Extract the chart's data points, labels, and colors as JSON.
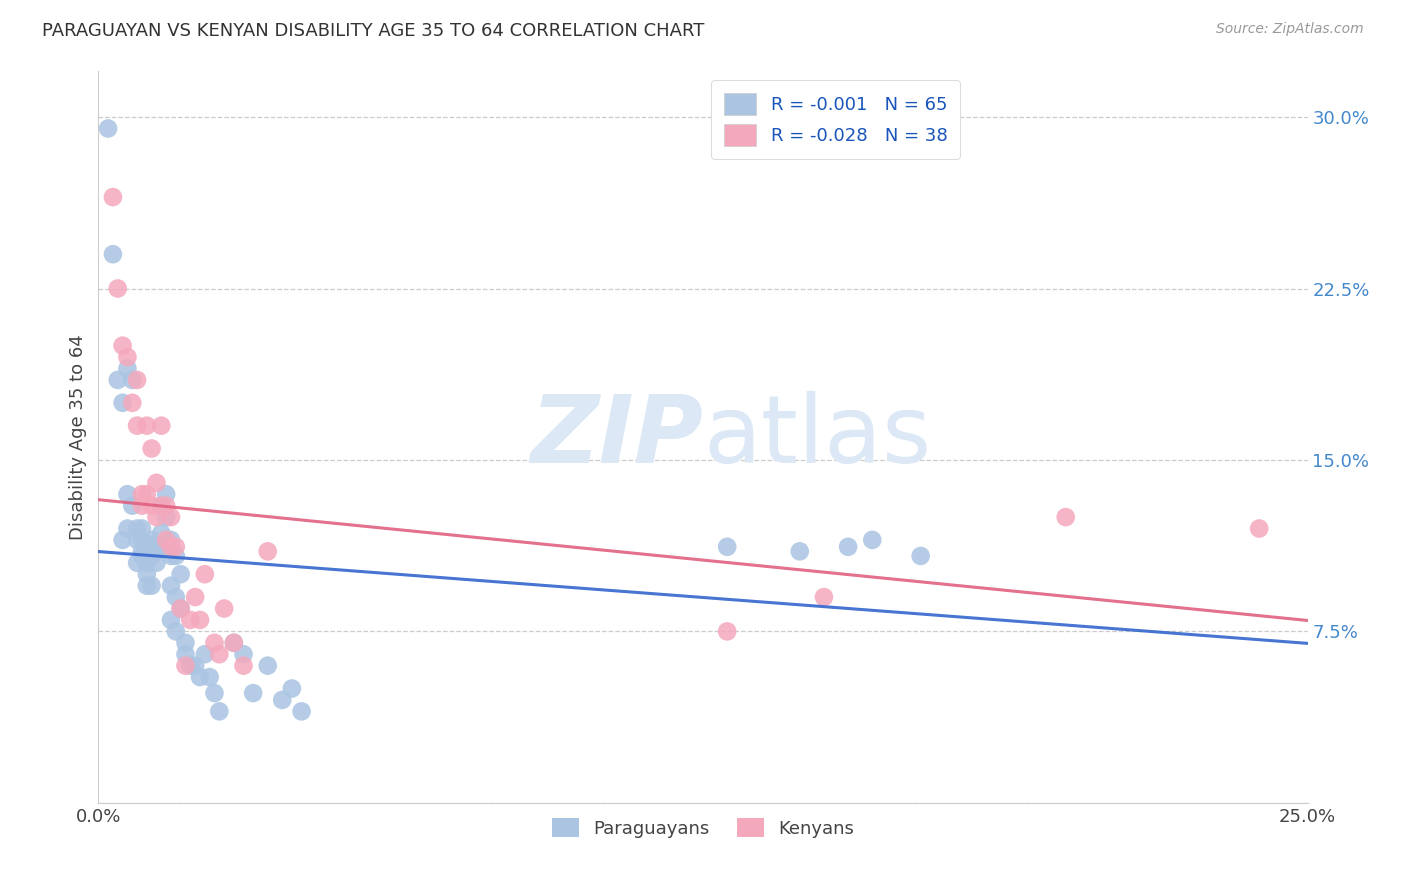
{
  "title": "PARAGUAYAN VS KENYAN DISABILITY AGE 35 TO 64 CORRELATION CHART",
  "source": "Source: ZipAtlas.com",
  "ylabel": "Disability Age 35 to 64",
  "xlim": [
    0.0,
    0.25
  ],
  "ylim": [
    0.0,
    0.32
  ],
  "x_ticks": [
    0.0,
    0.05,
    0.1,
    0.15,
    0.2,
    0.25
  ],
  "x_tick_labels": [
    "0.0%",
    "",
    "",
    "",
    "",
    "25.0%"
  ],
  "y_ticks": [
    0.0,
    0.075,
    0.15,
    0.225,
    0.3
  ],
  "y_tick_labels": [
    "",
    "7.5%",
    "15.0%",
    "22.5%",
    "30.0%"
  ],
  "paraguayan_color": "#aac4e2",
  "kenyan_color": "#f4a8bc",
  "paraguayan_line_color": "#3366cc",
  "kenyan_line_color": "#e06080",
  "watermark_zip": "ZIP",
  "watermark_atlas": "atlas",
  "watermark_color": "#dce8f5",
  "background_color": "#ffffff",
  "grid_color": "#cccccc",
  "paraguayan_x": [
    0.002,
    0.003,
    0.004,
    0.005,
    0.005,
    0.006,
    0.006,
    0.006,
    0.007,
    0.007,
    0.008,
    0.008,
    0.008,
    0.009,
    0.009,
    0.009,
    0.009,
    0.01,
    0.01,
    0.01,
    0.01,
    0.01,
    0.011,
    0.011,
    0.011,
    0.011,
    0.012,
    0.012,
    0.012,
    0.013,
    0.013,
    0.013,
    0.014,
    0.014,
    0.015,
    0.015,
    0.015,
    0.015,
    0.016,
    0.016,
    0.016,
    0.017,
    0.017,
    0.018,
    0.018,
    0.019,
    0.02,
    0.021,
    0.022,
    0.023,
    0.024,
    0.025,
    0.028,
    0.03,
    0.032,
    0.035,
    0.038,
    0.04,
    0.042,
    0.13,
    0.145,
    0.155,
    0.16,
    0.17
  ],
  "paraguayan_y": [
    0.295,
    0.24,
    0.185,
    0.175,
    0.115,
    0.12,
    0.135,
    0.19,
    0.13,
    0.185,
    0.12,
    0.115,
    0.105,
    0.115,
    0.12,
    0.11,
    0.108,
    0.113,
    0.108,
    0.1,
    0.095,
    0.105,
    0.115,
    0.112,
    0.108,
    0.095,
    0.112,
    0.11,
    0.105,
    0.118,
    0.13,
    0.112,
    0.135,
    0.125,
    0.115,
    0.108,
    0.095,
    0.08,
    0.09,
    0.108,
    0.075,
    0.1,
    0.085,
    0.07,
    0.065,
    0.06,
    0.06,
    0.055,
    0.065,
    0.055,
    0.048,
    0.04,
    0.07,
    0.065,
    0.048,
    0.06,
    0.045,
    0.05,
    0.04,
    0.112,
    0.11,
    0.112,
    0.115,
    0.108
  ],
  "kenyan_x": [
    0.003,
    0.004,
    0.005,
    0.006,
    0.007,
    0.008,
    0.008,
    0.009,
    0.009,
    0.01,
    0.01,
    0.011,
    0.011,
    0.012,
    0.012,
    0.013,
    0.013,
    0.014,
    0.014,
    0.015,
    0.015,
    0.016,
    0.017,
    0.018,
    0.019,
    0.02,
    0.021,
    0.022,
    0.024,
    0.025,
    0.026,
    0.028,
    0.03,
    0.035,
    0.13,
    0.15,
    0.2,
    0.24
  ],
  "kenyan_y": [
    0.265,
    0.225,
    0.2,
    0.195,
    0.175,
    0.185,
    0.165,
    0.135,
    0.13,
    0.165,
    0.135,
    0.155,
    0.13,
    0.125,
    0.14,
    0.165,
    0.13,
    0.13,
    0.115,
    0.112,
    0.125,
    0.112,
    0.085,
    0.06,
    0.08,
    0.09,
    0.08,
    0.1,
    0.07,
    0.065,
    0.085,
    0.07,
    0.06,
    0.11,
    0.075,
    0.09,
    0.125,
    0.12
  ]
}
